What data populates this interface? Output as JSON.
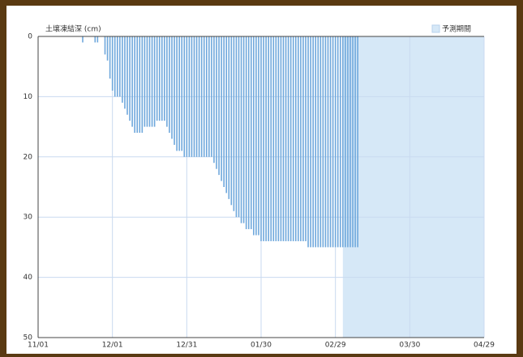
{
  "chart_data": {
    "type": "bar",
    "title": "土壌凍結深 (cm)",
    "color": "#6fa8dc",
    "x": [
      18,
      23,
      24,
      27,
      28,
      29,
      30,
      31,
      32,
      33,
      34,
      35,
      36,
      37,
      38,
      39,
      40,
      41,
      42,
      43,
      44,
      45,
      46,
      47,
      48,
      49,
      50,
      51,
      52,
      53,
      54,
      55,
      56,
      57,
      58,
      59,
      60,
      61,
      62,
      63,
      64,
      65,
      66,
      67,
      68,
      69,
      70,
      71,
      72,
      73,
      74,
      75,
      76,
      77,
      78,
      79,
      80,
      81,
      82,
      83,
      84,
      85,
      86,
      87,
      88,
      89,
      90,
      91,
      92,
      93,
      94,
      95,
      96,
      97,
      98,
      99,
      100,
      101,
      102,
      103,
      104,
      105,
      106,
      107,
      108,
      109,
      110,
      111,
      112,
      113,
      114,
      115,
      116,
      117,
      118,
      119,
      120,
      121,
      122,
      123,
      124,
      125,
      126,
      127,
      128,
      129
    ],
    "values": [
      1,
      1,
      1,
      3,
      4,
      7,
      9,
      10,
      10,
      10,
      11,
      12,
      13,
      14,
      15,
      16,
      16,
      16,
      16,
      15,
      15,
      15,
      15,
      15,
      14,
      14,
      14,
      14,
      15,
      16,
      17,
      18,
      19,
      19,
      19,
      20,
      20,
      20,
      20,
      20,
      20,
      20,
      20,
      20,
      20,
      20,
      20,
      21,
      22,
      23,
      24,
      25,
      26,
      27,
      28,
      29,
      30,
      30,
      31,
      31,
      32,
      32,
      32,
      33,
      33,
      33,
      34,
      34,
      34,
      34,
      34,
      34,
      34,
      34,
      34,
      34,
      34,
      34,
      34,
      34,
      34,
      34,
      34,
      34,
      34,
      35,
      35,
      35,
      35,
      35,
      35,
      35,
      35,
      35,
      35,
      35,
      35,
      35,
      35,
      35,
      35,
      35,
      35,
      35,
      35,
      35
    ],
    "xlim": [
      0,
      180
    ],
    "xticks": [
      {
        "value": 0,
        "label": "11/01"
      },
      {
        "value": 30,
        "label": "12/01"
      },
      {
        "value": 60,
        "label": "12/31"
      },
      {
        "value": 90,
        "label": "01/30"
      },
      {
        "value": 120,
        "label": "02/29"
      },
      {
        "value": 150,
        "label": "03/30"
      },
      {
        "value": 180,
        "label": "04/29"
      }
    ],
    "ylim": [
      0,
      50
    ],
    "yticks": [
      0,
      10,
      20,
      30,
      40,
      50
    ],
    "y_inverted": true,
    "grid": true,
    "forecast": {
      "name": "予測期間",
      "start": 123,
      "end": 180,
      "color": "#d6e8f7"
    },
    "legend": "top-right"
  }
}
